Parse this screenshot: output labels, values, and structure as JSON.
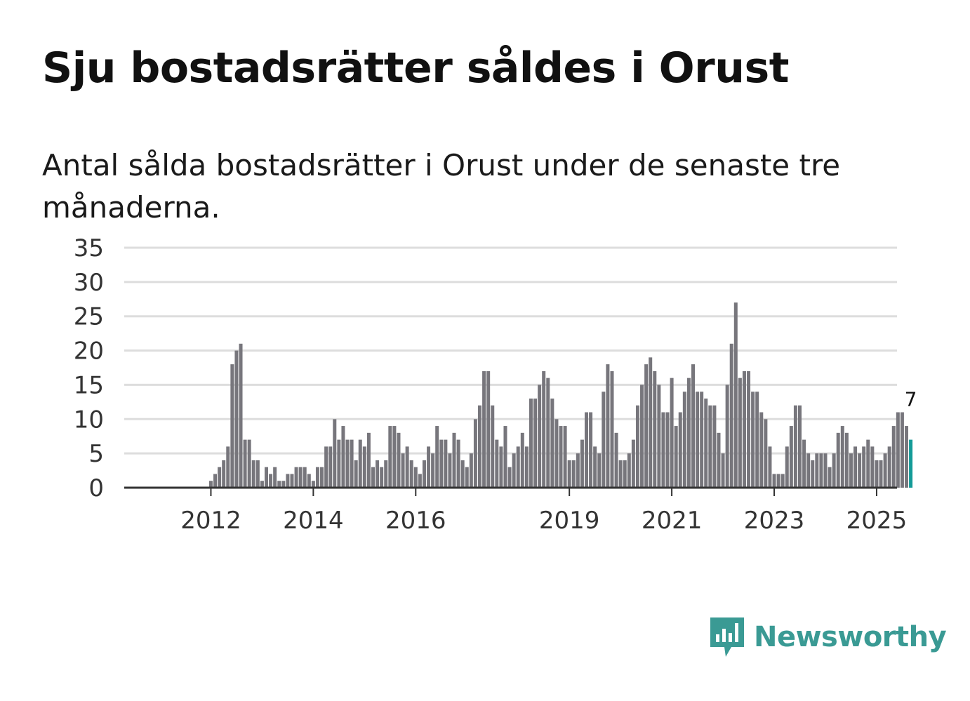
{
  "header": {
    "title": "Sju bostadsrätter såldes i Orust",
    "subtitle": "Antal sålda bostadsrätter i Orust under de senaste tre månaderna."
  },
  "brand": {
    "name": "Newsworthy",
    "color": "#3a9a94",
    "icon": "newsworthy-logo-icon"
  },
  "colors": {
    "bar": "#77767c",
    "highlight": "#149b98",
    "grid": "#dddddd",
    "axis": "#333333"
  },
  "chart_data": {
    "type": "bar",
    "title": "Sju bostadsrätter såldes i Orust",
    "subtitle": "Antal sålda bostadsrätter i Orust under de senaste tre månaderna.",
    "xlabel": "",
    "ylabel": "",
    "ylim": [
      0,
      35
    ],
    "yticks": [
      0,
      5,
      10,
      15,
      20,
      25,
      30,
      35
    ],
    "x_start": "2011-01",
    "frequency": "monthly",
    "xticks": [
      {
        "label": "2012",
        "index": 12
      },
      {
        "label": "2014",
        "index": 36
      },
      {
        "label": "2016",
        "index": 60
      },
      {
        "label": "2019",
        "index": 96
      },
      {
        "label": "2021",
        "index": 120
      },
      {
        "label": "2023",
        "index": 144
      },
      {
        "label": "2025",
        "index": 168
      }
    ],
    "values": [
      0,
      0,
      0,
      0,
      0,
      0,
      0,
      0,
      0,
      0,
      0,
      0,
      1,
      2,
      3,
      4,
      6,
      18,
      20,
      21,
      7,
      7,
      4,
      4,
      1,
      3,
      2,
      3,
      1,
      1,
      2,
      2,
      3,
      3,
      3,
      2,
      1,
      3,
      3,
      6,
      6,
      10,
      7,
      9,
      7,
      7,
      4,
      7,
      6,
      8,
      3,
      4,
      3,
      4,
      9,
      9,
      8,
      5,
      6,
      4,
      3,
      2,
      4,
      6,
      5,
      9,
      7,
      7,
      5,
      8,
      7,
      4,
      3,
      5,
      10,
      12,
      17,
      17,
      12,
      7,
      6,
      9,
      3,
      5,
      6,
      8,
      6,
      13,
      13,
      15,
      17,
      16,
      13,
      10,
      9,
      9,
      4,
      4,
      5,
      7,
      11,
      11,
      6,
      5,
      14,
      18,
      17,
      8,
      4,
      4,
      5,
      7,
      12,
      15,
      18,
      19,
      17,
      15,
      11,
      11,
      16,
      9,
      11,
      14,
      16,
      18,
      14,
      14,
      13,
      12,
      12,
      8,
      5,
      15,
      21,
      27,
      16,
      17,
      17,
      14,
      14,
      11,
      10,
      6,
      2,
      2,
      2,
      6,
      9,
      12,
      12,
      7,
      5,
      4,
      5,
      5,
      5,
      3,
      5,
      8,
      9,
      8,
      5,
      6,
      5,
      6,
      7,
      6,
      4,
      4,
      5,
      6,
      9,
      11,
      11,
      9,
      7
    ],
    "highlight_last": true,
    "last_value_label": "7",
    "grid": true,
    "legend": "none"
  }
}
